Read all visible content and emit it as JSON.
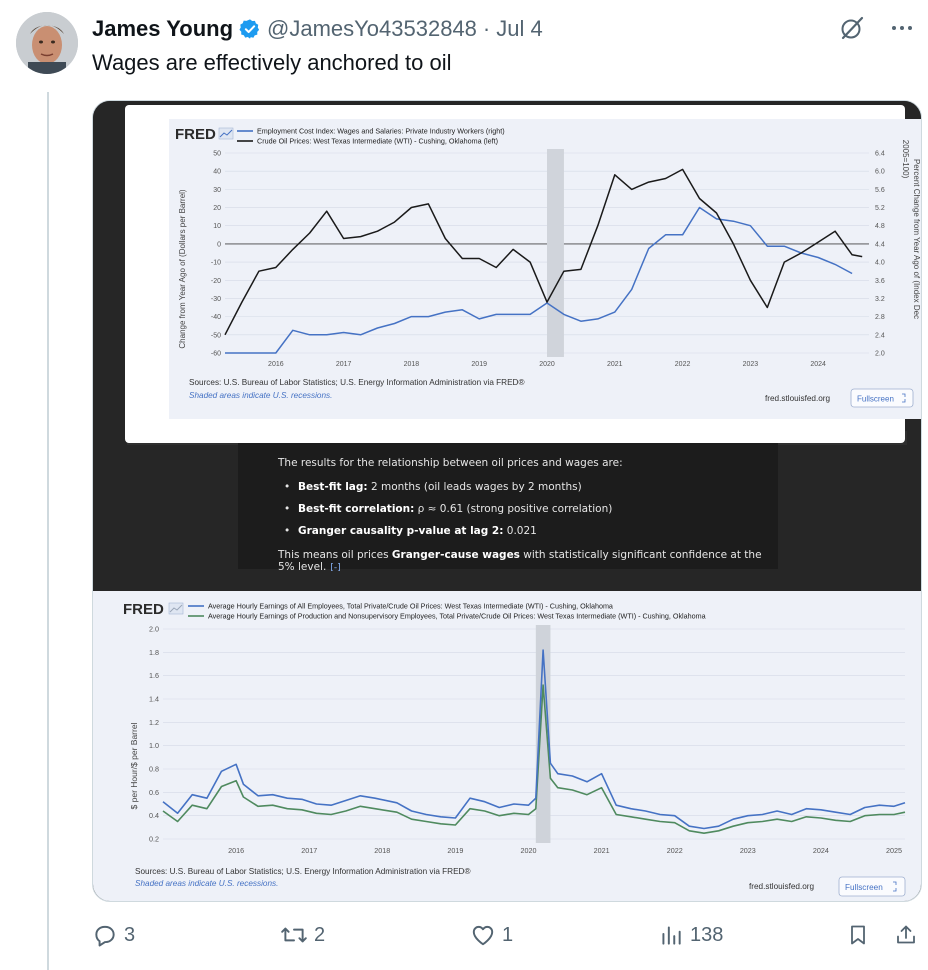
{
  "tweet": {
    "display_name": "James Young",
    "handle": "@JamesYo43532848",
    "separator": "·",
    "date": "Jul 4",
    "text": "Wages are effectively anchored to oil"
  },
  "colors": {
    "blue_series": "#4572c4",
    "black_series": "#1a1a1a",
    "green_series": "#4f8a5f",
    "verified": "#1d9bf0",
    "muted": "#536471"
  },
  "actions": {
    "replies": "3",
    "reposts": "2",
    "likes": "1",
    "views": "138"
  },
  "chart1": {
    "logo": "FRED",
    "legend": [
      "Employment Cost Index: Wages and Salaries: Private Industry Workers (right)",
      "Crude Oil Prices: West Texas Intermediate (WTI) - Cushing, Oklahoma (left)"
    ],
    "left_label": "Change from Year Ago of (Dollars per Barrel)",
    "right_label": "Percent Change from Year Ago of (Index Dec 2005=100)",
    "sources": "Sources: U.S. Bureau of Labor Statistics; U.S. Energy Information Administration via FRED®",
    "shaded_note": "Shaded areas indicate U.S. recessions.",
    "site": "fred.stlouisfed.org",
    "fullscreen": "Fullscreen"
  },
  "results": {
    "intro": "The results for the relationship between oil prices and wages are:",
    "items": [
      {
        "label": "Best-fit lag:",
        "value": " 2 months (oil leads wages by 2 months)"
      },
      {
        "label": "Best-fit correlation:",
        "value": " ρ ≈ 0.61 (strong positive correlation)"
      },
      {
        "label": "Granger causality p-value at lag 2:",
        "value": " 0.021"
      }
    ],
    "concl_pre": "This means oil prices ",
    "concl_bold": "Granger-cause wages",
    "concl_post": " with statistically significant confidence at the 5% level.",
    "concl_badge": "[-]"
  },
  "chart2": {
    "logo": "FRED",
    "legend": [
      "Average Hourly Earnings of All Employees, Total Private/Crude Oil Prices: West Texas Intermediate (WTI) - Cushing, Oklahoma",
      "Average Hourly Earnings of Production and Nonsupervisory Employees, Total Private/Crude Oil Prices: West Texas Intermediate (WTI) - Cushing, Oklahoma"
    ],
    "ylabel": "$ per Hour/$ per Barrel",
    "sources": "Sources: U.S. Bureau of Labor Statistics; U.S. Energy Information Administration via FRED®",
    "shaded_note": "Shaded areas indicate U.S. recessions.",
    "site": "fred.stlouisfed.org",
    "fullscreen": "Fullscreen"
  },
  "chart_data": [
    {
      "type": "line",
      "title": "",
      "x_ticks": [
        "2016",
        "2017",
        "2018",
        "2019",
        "2020",
        "2021",
        "2022",
        "2023",
        "2024"
      ],
      "left_ticks": [
        "50",
        "40",
        "30",
        "20",
        "10",
        "0",
        "-10",
        "-20",
        "-30",
        "-40",
        "-50",
        "-60"
      ],
      "right_ticks": [
        "6.4",
        "6.0",
        "5.6",
        "5.2",
        "4.8",
        "4.4",
        "4.0",
        "3.6",
        "3.2",
        "2.8",
        "2.4",
        "2.0"
      ],
      "ylim_left": [
        -60,
        50
      ],
      "ylim_right": [
        2.0,
        6.4
      ],
      "xlim": [
        2015.25,
        2024.75
      ],
      "recession": [
        2020.0,
        2020.25
      ],
      "series": [
        {
          "name": "Employment Cost Index: Wages and Salaries: Private Industry Workers (right)",
          "axis": "right",
          "x": [
            2015.25,
            2015.5,
            2015.75,
            2016.0,
            2016.25,
            2016.5,
            2016.75,
            2017.0,
            2017.25,
            2017.5,
            2017.75,
            2018.0,
            2018.25,
            2018.5,
            2018.75,
            2019.0,
            2019.25,
            2019.5,
            2019.75,
            2020.0,
            2020.25,
            2020.5,
            2020.75,
            2021.0,
            2021.25,
            2021.5,
            2021.75,
            2022.0,
            2022.25,
            2022.5,
            2022.75,
            2023.0,
            2023.25,
            2023.5,
            2023.75,
            2024.0,
            2024.25,
            2024.5
          ],
          "y": [
            2.0,
            2.0,
            2.0,
            2.0,
            2.5,
            2.4,
            2.4,
            2.45,
            2.4,
            2.55,
            2.65,
            2.8,
            2.8,
            2.9,
            2.95,
            2.75,
            2.85,
            2.85,
            2.85,
            3.1,
            2.85,
            2.7,
            2.75,
            2.9,
            3.4,
            4.3,
            4.6,
            4.6,
            5.2,
            4.95,
            4.9,
            4.8,
            4.35,
            4.35,
            4.2,
            4.1,
            3.95,
            3.75
          ]
        },
        {
          "name": "Crude Oil Prices: West Texas Intermediate (WTI) - Cushing, Oklahoma (left)",
          "axis": "left",
          "x": [
            2015.25,
            2015.5,
            2015.75,
            2016.0,
            2016.25,
            2016.5,
            2016.75,
            2017.0,
            2017.25,
            2017.5,
            2017.75,
            2018.0,
            2018.25,
            2018.5,
            2018.75,
            2019.0,
            2019.25,
            2019.5,
            2019.75,
            2020.0,
            2020.25,
            2020.5,
            2020.75,
            2021.0,
            2021.25,
            2021.5,
            2021.75,
            2022.0,
            2022.25,
            2022.5,
            2022.75,
            2023.0,
            2023.25,
            2023.5,
            2023.75,
            2024.0,
            2024.25,
            2024.5,
            2024.65
          ],
          "y": [
            -50,
            -32,
            -15,
            -13,
            -3,
            6,
            18,
            3,
            4,
            7,
            12,
            20,
            22,
            3,
            -8,
            -8,
            -13,
            -3,
            -10,
            -32,
            -15,
            -14,
            10,
            38,
            30,
            34,
            36,
            41,
            25,
            17,
            0,
            -20,
            -35,
            -10,
            -5,
            1,
            7,
            -6,
            -7
          ]
        }
      ]
    },
    {
      "type": "line",
      "title": "",
      "ylabel": "$ per Hour/$ per Barrel",
      "x_ticks": [
        "2016",
        "2017",
        "2018",
        "2019",
        "2020",
        "2021",
        "2022",
        "2023",
        "2024",
        "2025"
      ],
      "y_ticks": [
        "2.0",
        "1.8",
        "1.6",
        "1.4",
        "1.2",
        "1.0",
        "0.8",
        "0.6",
        "0.4",
        "0.2"
      ],
      "ylim": [
        0.2,
        2.0
      ],
      "xlim": [
        2015.0,
        2025.15
      ],
      "recession": [
        2020.1,
        2020.3
      ],
      "series": [
        {
          "name": "Average Hourly Earnings of All Employees, Total Private/Crude Oil Prices: West Texas Intermediate (WTI) - Cushing, Oklahoma",
          "x": [
            2015.0,
            2015.2,
            2015.4,
            2015.6,
            2015.8,
            2016.0,
            2016.1,
            2016.3,
            2016.5,
            2016.7,
            2016.9,
            2017.1,
            2017.3,
            2017.5,
            2017.7,
            2017.9,
            2018.2,
            2018.4,
            2018.6,
            2018.8,
            2019.0,
            2019.2,
            2019.4,
            2019.6,
            2019.8,
            2020.0,
            2020.1,
            2020.2,
            2020.3,
            2020.4,
            2020.6,
            2020.8,
            2021.0,
            2021.2,
            2021.4,
            2021.6,
            2021.8,
            2022.0,
            2022.2,
            2022.4,
            2022.6,
            2022.8,
            2023.0,
            2023.2,
            2023.4,
            2023.6,
            2023.8,
            2024.0,
            2024.2,
            2024.4,
            2024.6,
            2024.8,
            2025.0,
            2025.15
          ],
          "y": [
            0.52,
            0.42,
            0.58,
            0.55,
            0.78,
            0.84,
            0.67,
            0.57,
            0.58,
            0.55,
            0.54,
            0.5,
            0.49,
            0.53,
            0.57,
            0.55,
            0.51,
            0.44,
            0.41,
            0.39,
            0.38,
            0.55,
            0.52,
            0.47,
            0.5,
            0.49,
            0.55,
            1.82,
            0.85,
            0.76,
            0.74,
            0.69,
            0.76,
            0.49,
            0.46,
            0.44,
            0.41,
            0.4,
            0.31,
            0.29,
            0.31,
            0.37,
            0.4,
            0.41,
            0.44,
            0.41,
            0.46,
            0.45,
            0.43,
            0.41,
            0.47,
            0.49,
            0.48,
            0.51
          ]
        },
        {
          "name": "Average Hourly Earnings of Production and Nonsupervisory Employees, Total Private/Crude Oil Prices: West Texas Intermediate (WTI) - Cushing, Oklahoma",
          "x": [
            2015.0,
            2015.2,
            2015.4,
            2015.6,
            2015.8,
            2016.0,
            2016.1,
            2016.3,
            2016.5,
            2016.7,
            2016.9,
            2017.1,
            2017.3,
            2017.5,
            2017.7,
            2017.9,
            2018.2,
            2018.4,
            2018.6,
            2018.8,
            2019.0,
            2019.2,
            2019.4,
            2019.6,
            2019.8,
            2020.0,
            2020.1,
            2020.2,
            2020.3,
            2020.4,
            2020.6,
            2020.8,
            2021.0,
            2021.2,
            2021.4,
            2021.6,
            2021.8,
            2022.0,
            2022.2,
            2022.4,
            2022.6,
            2022.8,
            2023.0,
            2023.2,
            2023.4,
            2023.6,
            2023.8,
            2024.0,
            2024.2,
            2024.4,
            2024.6,
            2024.8,
            2025.0,
            2025.15
          ],
          "y": [
            0.44,
            0.35,
            0.49,
            0.46,
            0.65,
            0.7,
            0.56,
            0.48,
            0.49,
            0.46,
            0.45,
            0.42,
            0.41,
            0.44,
            0.48,
            0.46,
            0.43,
            0.37,
            0.35,
            0.33,
            0.32,
            0.46,
            0.44,
            0.4,
            0.42,
            0.41,
            0.46,
            1.52,
            0.72,
            0.64,
            0.62,
            0.58,
            0.64,
            0.41,
            0.39,
            0.37,
            0.35,
            0.34,
            0.27,
            0.25,
            0.27,
            0.31,
            0.34,
            0.35,
            0.37,
            0.35,
            0.39,
            0.38,
            0.36,
            0.35,
            0.4,
            0.41,
            0.41,
            0.43
          ]
        }
      ]
    }
  ]
}
